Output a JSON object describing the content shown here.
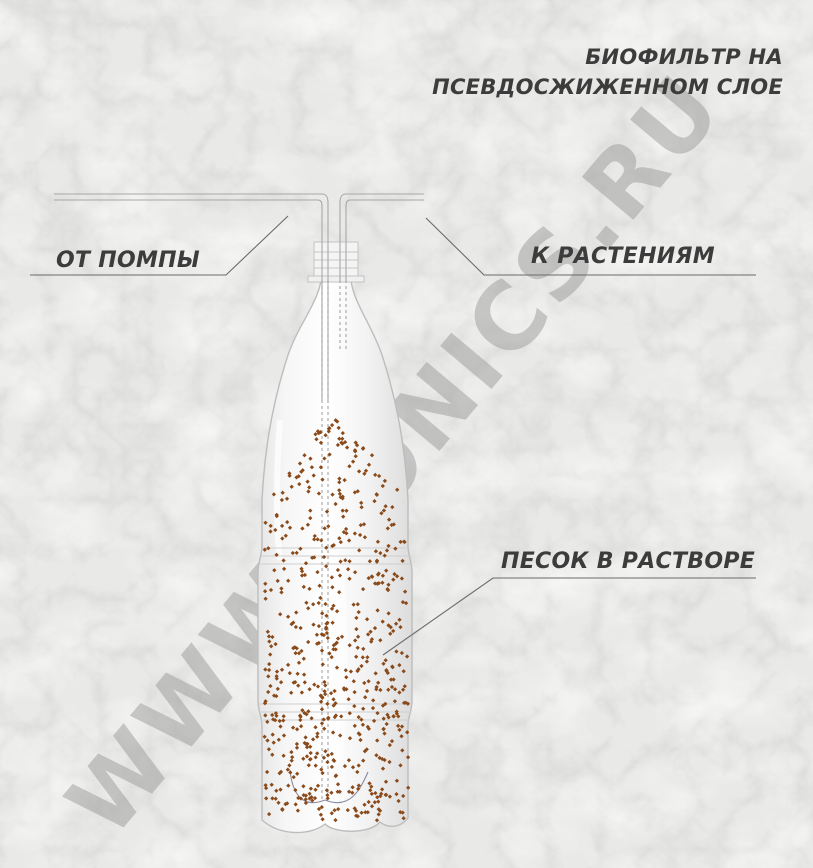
{
  "title": {
    "line1": "БИОФИЛЬТР НА",
    "line2": "ПСЕВДОСЖИЖЕННОМ СЛОЕ"
  },
  "labels": {
    "from_pump": "ОТ ПОМПЫ",
    "to_plants": "К РАСТЕНИЯМ",
    "sand": "ПЕСОК В РАСТВОРЕ"
  },
  "watermark": "WWW.PONICS.RU",
  "colors": {
    "background": "#ebebea",
    "text": "#3c3c3c",
    "sand": "#8a4a1a",
    "bottle_outline": "#b4b4b4",
    "leader_line": "#6a6a6a"
  },
  "sand": {
    "particle_count": 620
  }
}
